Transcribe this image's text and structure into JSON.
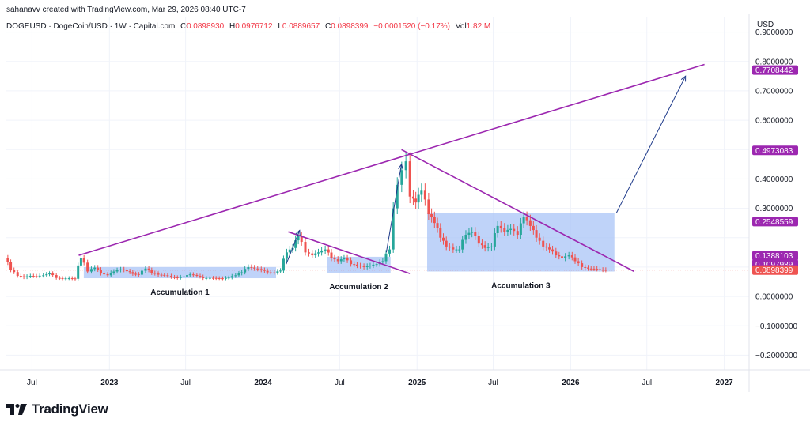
{
  "header": {
    "created_by": "sahanavv created with TradingView.com, Mar 29, 2026 08:40 UTC-7"
  },
  "symbol_bar": {
    "symbol": "DOGEUSD · DogeCoin/USD · 1W · Capital.com",
    "open_label": "O",
    "open_value": "0.0898930",
    "high_label": "H",
    "high_value": "0.0976712",
    "low_label": "L",
    "low_value": "0.0889657",
    "close_label": "C",
    "close_value": "0.0898399",
    "change_value": "−0.0001520 (−0.17%)",
    "vol_label": "Vol",
    "vol_value": "1.82 M"
  },
  "footer": {
    "brand": "TradingView"
  },
  "colors": {
    "up": "#26a69a",
    "down": "#ef5350",
    "trend": "#9c27b0",
    "box": "#aac4f7",
    "arrow": "#1e3a8a",
    "label_bg": "#9c27b0"
  },
  "chart_data": {
    "type": "candlestick",
    "title": "",
    "currency_label": "USD",
    "ylim": [
      -0.25,
      0.95
    ],
    "y_ticks": [
      {
        "value": 0.9,
        "label": "0.9000000"
      },
      {
        "value": 0.8,
        "label": "0.8000000"
      },
      {
        "value": 0.7,
        "label": "0.7000000"
      },
      {
        "value": 0.6,
        "label": "0.6000000"
      },
      {
        "value": 0.4,
        "label": "0.4000000"
      },
      {
        "value": 0.3,
        "label": "0.3000000"
      },
      {
        "value": 0.0,
        "label": "0.0000000"
      },
      {
        "value": -0.1,
        "label": "−0.1000000"
      },
      {
        "value": -0.2,
        "label": "−0.2000000"
      }
    ],
    "x_range": [
      "2022-05-01",
      "2027-03-01"
    ],
    "x_ticks": [
      {
        "date": "2022-07-01",
        "label": "Jul",
        "bold": false
      },
      {
        "date": "2023-01-01",
        "label": "2023",
        "bold": true
      },
      {
        "date": "2023-07-01",
        "label": "Jul",
        "bold": false
      },
      {
        "date": "2024-01-01",
        "label": "2024",
        "bold": true
      },
      {
        "date": "2024-07-01",
        "label": "Jul",
        "bold": false
      },
      {
        "date": "2025-01-01",
        "label": "2025",
        "bold": true
      },
      {
        "date": "2025-07-01",
        "label": "Jul",
        "bold": false
      },
      {
        "date": "2026-01-01",
        "label": "2026",
        "bold": true
      },
      {
        "date": "2026-07-01",
        "label": "Jul",
        "bold": false
      },
      {
        "date": "2027-01-01",
        "label": "2027",
        "bold": true
      }
    ],
    "price_labels": [
      {
        "value": 0.7708442,
        "label": "0.7708442",
        "color": "#9c27b0"
      },
      {
        "value": 0.4973083,
        "label": "0.4973083",
        "color": "#9c27b0"
      },
      {
        "value": 0.2548559,
        "label": "0.2548559",
        "color": "#9c27b0"
      },
      {
        "value": 0.1388103,
        "label": "0.1388103",
        "color": "#9c27b0"
      },
      {
        "value": 0.1097989,
        "label": "0.1097989",
        "color": "#9c27b0"
      },
      {
        "value": 0.0911487,
        "label": "0.0911487",
        "color": "#9c27b0"
      },
      {
        "value": 0.0898399,
        "label": "0.0898399",
        "color": "#ef5350"
      }
    ],
    "series": [
      {
        "name": "DOGEUSD",
        "points": [
          [
            "2022-05-01",
            0.13
          ],
          [
            "2022-05-15",
            0.09
          ],
          [
            "2022-06-01",
            0.07
          ],
          [
            "2022-06-15",
            0.065
          ],
          [
            "2022-07-01",
            0.07
          ],
          [
            "2022-07-15",
            0.068
          ],
          [
            "2022-08-01",
            0.072
          ],
          [
            "2022-08-15",
            0.078
          ],
          [
            "2022-09-01",
            0.063
          ],
          [
            "2022-09-15",
            0.061
          ],
          [
            "2022-10-01",
            0.062
          ],
          [
            "2022-10-15",
            0.06
          ],
          [
            "2022-10-29",
            0.13
          ],
          [
            "2022-11-05",
            0.115
          ],
          [
            "2022-11-15",
            0.085
          ],
          [
            "2022-12-01",
            0.098
          ],
          [
            "2022-12-15",
            0.078
          ],
          [
            "2023-01-01",
            0.072
          ],
          [
            "2023-01-15",
            0.085
          ],
          [
            "2023-02-01",
            0.092
          ],
          [
            "2023-02-15",
            0.086
          ],
          [
            "2023-03-01",
            0.077
          ],
          [
            "2023-03-15",
            0.074
          ],
          [
            "2023-04-01",
            0.095
          ],
          [
            "2023-04-15",
            0.08
          ],
          [
            "2023-05-01",
            0.074
          ],
          [
            "2023-05-15",
            0.072
          ],
          [
            "2023-06-01",
            0.066
          ],
          [
            "2023-06-15",
            0.063
          ],
          [
            "2023-07-01",
            0.068
          ],
          [
            "2023-07-15",
            0.075
          ],
          [
            "2023-08-01",
            0.07
          ],
          [
            "2023-08-15",
            0.062
          ],
          [
            "2023-09-01",
            0.063
          ],
          [
            "2023-09-15",
            0.062
          ],
          [
            "2023-10-01",
            0.061
          ],
          [
            "2023-10-15",
            0.064
          ],
          [
            "2023-11-01",
            0.072
          ],
          [
            "2023-11-15",
            0.082
          ],
          [
            "2023-12-01",
            0.1
          ],
          [
            "2023-12-15",
            0.095
          ],
          [
            "2024-01-01",
            0.09
          ],
          [
            "2024-01-15",
            0.082
          ],
          [
            "2024-02-01",
            0.081
          ],
          [
            "2024-02-15",
            0.088
          ],
          [
            "2024-03-01",
            0.15
          ],
          [
            "2024-03-15",
            0.165
          ],
          [
            "2024-03-28",
            0.205
          ],
          [
            "2024-04-15",
            0.15
          ],
          [
            "2024-05-01",
            0.14
          ],
          [
            "2024-05-15",
            0.15
          ],
          [
            "2024-06-01",
            0.16
          ],
          [
            "2024-06-15",
            0.13
          ],
          [
            "2024-07-01",
            0.12
          ],
          [
            "2024-07-15",
            0.13
          ],
          [
            "2024-08-01",
            0.11
          ],
          [
            "2024-08-15",
            0.105
          ],
          [
            "2024-09-01",
            0.1
          ],
          [
            "2024-09-15",
            0.105
          ],
          [
            "2024-10-01",
            0.11
          ],
          [
            "2024-10-15",
            0.12
          ],
          [
            "2024-11-01",
            0.16
          ],
          [
            "2024-11-10",
            0.3
          ],
          [
            "2024-11-20",
            0.38
          ],
          [
            "2024-12-01",
            0.43
          ],
          [
            "2024-12-10",
            0.46
          ],
          [
            "2024-12-20",
            0.34
          ],
          [
            "2025-01-01",
            0.32
          ],
          [
            "2025-01-15",
            0.36
          ],
          [
            "2025-01-25",
            0.33
          ],
          [
            "2025-02-01",
            0.28
          ],
          [
            "2025-02-15",
            0.25
          ],
          [
            "2025-03-01",
            0.2
          ],
          [
            "2025-03-15",
            0.17
          ],
          [
            "2025-04-01",
            0.16
          ],
          [
            "2025-04-15",
            0.16
          ],
          [
            "2025-05-01",
            0.21
          ],
          [
            "2025-05-15",
            0.22
          ],
          [
            "2025-06-01",
            0.18
          ],
          [
            "2025-06-15",
            0.165
          ],
          [
            "2025-07-01",
            0.17
          ],
          [
            "2025-07-15",
            0.24
          ],
          [
            "2025-08-01",
            0.22
          ],
          [
            "2025-08-15",
            0.23
          ],
          [
            "2025-09-01",
            0.21
          ],
          [
            "2025-09-15",
            0.27
          ],
          [
            "2025-10-01",
            0.24
          ],
          [
            "2025-10-15",
            0.2
          ],
          [
            "2025-11-01",
            0.17
          ],
          [
            "2025-11-15",
            0.16
          ],
          [
            "2025-12-01",
            0.14
          ],
          [
            "2025-12-15",
            0.13
          ],
          [
            "2026-01-01",
            0.14
          ],
          [
            "2026-01-15",
            0.12
          ],
          [
            "2026-02-01",
            0.1
          ],
          [
            "2026-02-15",
            0.095
          ],
          [
            "2026-03-01",
            0.094
          ],
          [
            "2026-03-15",
            0.091
          ],
          [
            "2026-03-29",
            0.0898
          ]
        ]
      }
    ],
    "trendlines": [
      {
        "from": [
          "2022-10-20",
          0.14
        ],
        "to": [
          "2026-11-15",
          0.79
        ]
      },
      {
        "from": [
          "2024-03-01",
          0.22
        ],
        "to": [
          "2024-12-15",
          0.078
        ]
      },
      {
        "from": [
          "2024-11-25",
          0.5
        ],
        "to": [
          "2026-06-01",
          0.085
        ]
      }
    ],
    "boxes": [
      {
        "label": "Accumulation 1",
        "from": "2022-11-01",
        "to": "2024-02-01",
        "top": 0.1,
        "bottom": 0.062
      },
      {
        "label": "Accumulation 2",
        "from": "2024-06-01",
        "to": "2024-10-30",
        "top": 0.135,
        "bottom": 0.081
      },
      {
        "label": "Accumulation 3",
        "from": "2025-01-25",
        "to": "2026-04-15",
        "top": 0.285,
        "bottom": 0.085
      }
    ],
    "arrows": [
      {
        "from": [
          "2024-02-25",
          0.11
        ],
        "to": [
          "2024-03-28",
          0.225
        ]
      },
      {
        "from": [
          "2024-10-20",
          0.15
        ],
        "to": [
          "2024-11-25",
          0.45
        ]
      },
      {
        "from": [
          "2026-04-20",
          0.285
        ],
        "to": [
          "2026-10-01",
          0.75
        ]
      }
    ]
  }
}
